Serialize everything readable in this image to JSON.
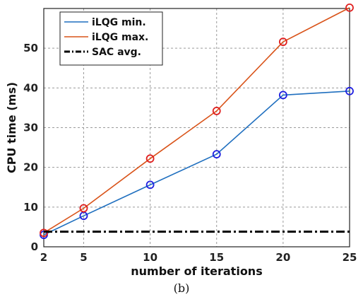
{
  "chart_data": {
    "type": "line",
    "xlabel": "number of iterations",
    "ylabel": "CPU time (ms)",
    "x": [
      2,
      5,
      10,
      15,
      20,
      25
    ],
    "x_ticks": [
      "2",
      "5",
      "10",
      "15",
      "20",
      "25"
    ],
    "y_ticks": [
      "0",
      "10",
      "20",
      "30",
      "40",
      "50"
    ],
    "xlim": [
      2,
      25
    ],
    "ylim": [
      0,
      60
    ],
    "grid": true,
    "legend_position": "top-left",
    "series": [
      {
        "name": "iLQG min.",
        "color": "#1f6fbf",
        "marker_color": "#1f1fe0",
        "values": [
          3.0,
          7.8,
          15.6,
          23.3,
          38.2,
          39.2
        ]
      },
      {
        "name": "iLQG max.",
        "color": "#d95319",
        "marker_color": "#e01f1f",
        "values": [
          3.5,
          9.7,
          22.2,
          34.2,
          51.6,
          60.2
        ]
      },
      {
        "name": "SAC avg.",
        "color": "#000000",
        "style": "dash-dot",
        "values": [
          3.8,
          3.8,
          3.8,
          3.8,
          3.8,
          3.8
        ]
      }
    ]
  },
  "caption": "(b)"
}
